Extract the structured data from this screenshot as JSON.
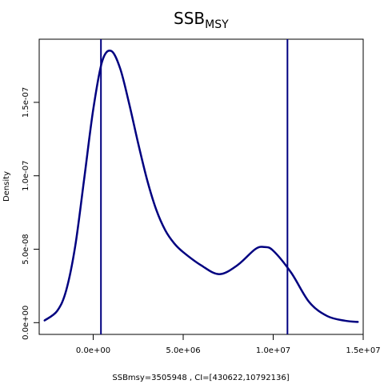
{
  "chart_data": {
    "type": "line",
    "title": "SSB",
    "title_subscript": "MSY",
    "xlabel": "SSBmsy=3505948 , CI=[430622,10792136]",
    "ylabel": "Density",
    "xlim": [
      -3000000,
      15000000
    ],
    "ylim": [
      -8e-09,
      1.93e-07
    ],
    "x_ticks": [
      0,
      5000000,
      10000000,
      15000000
    ],
    "x_tick_labels": [
      "0.0e+00",
      "5.0e+06",
      "1.0e+07",
      "1.5e+07"
    ],
    "y_ticks": [
      0,
      5e-08,
      1e-07,
      1.5e-07
    ],
    "y_tick_labels": [
      "0.0e+00",
      "5.0e-08",
      "1.0e-07",
      "1.5e-07"
    ],
    "grid": false,
    "line_color": "#000080",
    "vlines": [
      430622,
      10792136
    ],
    "series": [
      {
        "x": [
          -2700000,
          -2000000,
          -1500000,
          -1000000,
          -500000,
          0,
          500000,
          1000000,
          1500000,
          2000000,
          2500000,
          3000000,
          3500000,
          4000000,
          4500000,
          5000000,
          6000000,
          7000000,
          8000000,
          9000000,
          9500000,
          10000000,
          11000000,
          12000000,
          13000000,
          14000000,
          14700000
        ],
        "y": [
          1.5e-09,
          8e-09,
          2.2e-08,
          5.2e-08,
          9.8e-08,
          1.45e-07,
          1.78e-07,
          1.85e-07,
          1.73e-07,
          1.49e-07,
          1.22e-07,
          9.7e-08,
          7.7e-08,
          6.3e-08,
          5.4e-08,
          4.8e-08,
          3.9e-08,
          3.3e-08,
          3.9e-08,
          5e-08,
          5.15e-08,
          4.9e-08,
          3.4e-08,
          1.4e-08,
          4.5e-09,
          1.3e-09,
          5e-10
        ]
      }
    ]
  }
}
